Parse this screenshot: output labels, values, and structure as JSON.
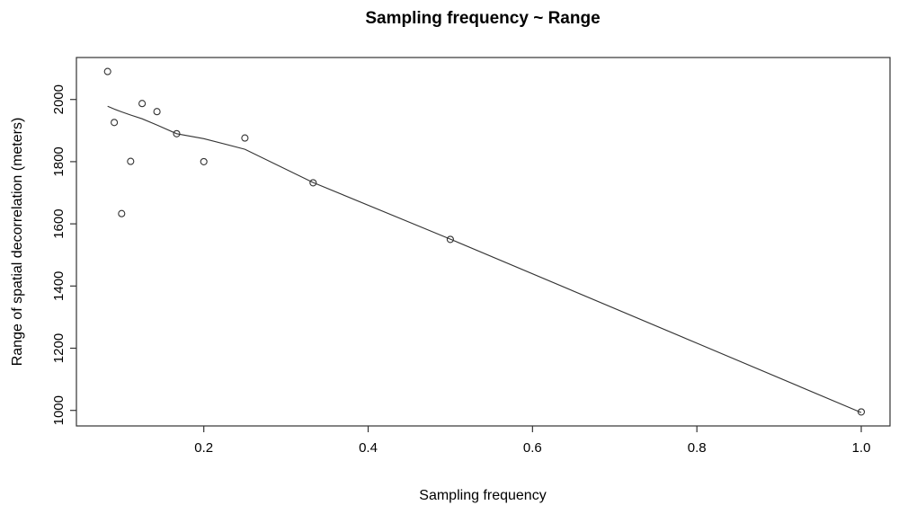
{
  "chart_data": {
    "type": "scatter",
    "title": "Sampling frequency ~ Range",
    "xlabel": "Sampling frequency",
    "ylabel": "Range of spatial decorrelation (meters)",
    "xlim": [
      0.045,
      1.035
    ],
    "ylim": [
      950,
      2135
    ],
    "x_ticks": [
      0.2,
      0.4,
      0.6,
      0.8,
      1.0
    ],
    "x_tick_labels": [
      "0.2",
      "0.4",
      "0.6",
      "0.8",
      "1.0"
    ],
    "y_ticks": [
      1000,
      1200,
      1400,
      1600,
      1800,
      2000
    ],
    "y_tick_labels": [
      "1000",
      "1200",
      "1400",
      "1600",
      "1800",
      "2000"
    ],
    "grid": false,
    "legend": "none",
    "marker": "open-circle",
    "points": [
      {
        "x": 0.083,
        "y": 2090
      },
      {
        "x": 0.091,
        "y": 1926
      },
      {
        "x": 0.1,
        "y": 1633
      },
      {
        "x": 0.111,
        "y": 1801
      },
      {
        "x": 0.125,
        "y": 1987
      },
      {
        "x": 0.143,
        "y": 1961
      },
      {
        "x": 0.167,
        "y": 1890
      },
      {
        "x": 0.2,
        "y": 1800
      },
      {
        "x": 0.25,
        "y": 1876
      },
      {
        "x": 0.333,
        "y": 1732
      },
      {
        "x": 0.5,
        "y": 1550
      },
      {
        "x": 1.0,
        "y": 995
      }
    ],
    "smooth_line": [
      {
        "x": 0.083,
        "y": 1978
      },
      {
        "x": 0.091,
        "y": 1969
      },
      {
        "x": 0.1,
        "y": 1960
      },
      {
        "x": 0.111,
        "y": 1950
      },
      {
        "x": 0.125,
        "y": 1938
      },
      {
        "x": 0.143,
        "y": 1918
      },
      {
        "x": 0.167,
        "y": 1890
      },
      {
        "x": 0.2,
        "y": 1874
      },
      {
        "x": 0.25,
        "y": 1840
      },
      {
        "x": 0.333,
        "y": 1733
      },
      {
        "x": 0.5,
        "y": 1551
      },
      {
        "x": 1.0,
        "y": 993
      }
    ],
    "colors": {
      "background": "#ffffff",
      "stroke": "#333333",
      "text": "#000000"
    }
  }
}
